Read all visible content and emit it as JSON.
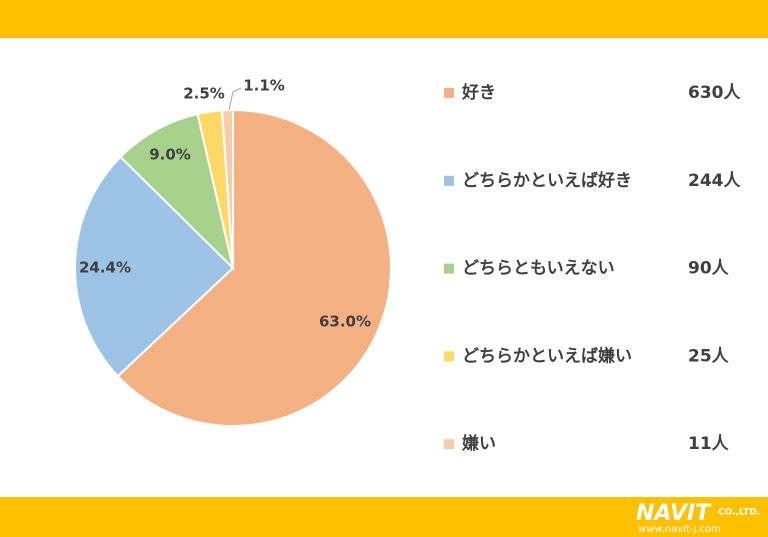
{
  "chart_data": {
    "type": "pie",
    "categories": [
      "好き",
      "どちらかといえば好き",
      "どちらともいえない",
      "どちらかといえば嫌い",
      "嫌い"
    ],
    "values": [
      63.0,
      24.4,
      9.0,
      2.5,
      1.1
    ],
    "value_labels": [
      "63.0%",
      "24.4%",
      "9.0%",
      "2.5%",
      "1.1%"
    ],
    "legend_counts": [
      "630人",
      "244人",
      "90人",
      "25人",
      "11人"
    ],
    "colors": [
      "#F4B183",
      "#9DC3E6",
      "#A9D18E",
      "#FFD966",
      "#F8CBAD"
    ]
  },
  "footer": {
    "logo": "NAVIT",
    "company": "CO.,LTD.",
    "url": "www.navit-j.com"
  }
}
